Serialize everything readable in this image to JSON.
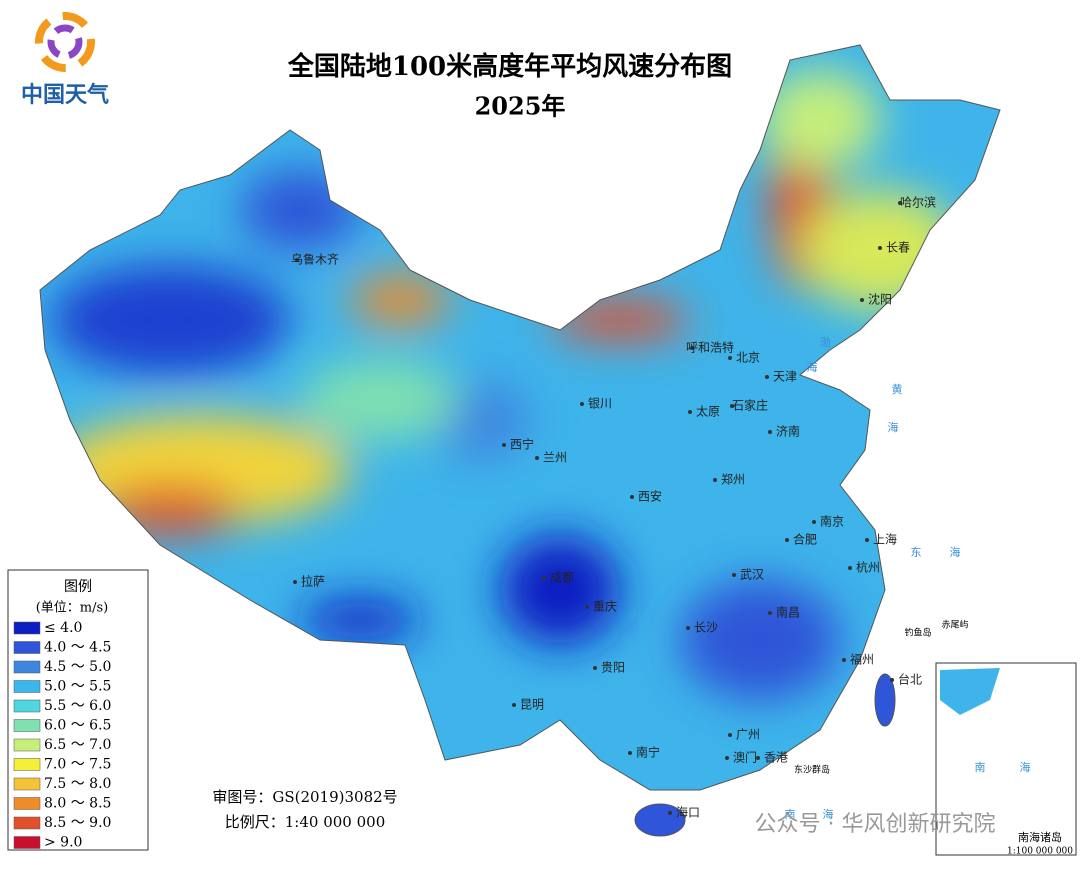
{
  "logo": "中国天气",
  "title": "全国陆地100米高度年平均风速分布图",
  "subtitle": "2025年",
  "legend": {
    "title": "图例",
    "unit": "(单位：m/s)",
    "items": [
      {
        "label": "≤ 4.0",
        "color": "#0b1fc2"
      },
      {
        "label": "4.0 ～ 4.5",
        "color": "#2f55d8"
      },
      {
        "label": "4.5 ～ 5.0",
        "color": "#3c86e0"
      },
      {
        "label": "5.0 ～ 5.5",
        "color": "#3cb7ec"
      },
      {
        "label": "5.5 ～ 6.0",
        "color": "#4fd6e0"
      },
      {
        "label": "6.0 ～ 6.5",
        "color": "#7fe0b0"
      },
      {
        "label": "6.5 ～ 7.0",
        "color": "#c6ef7a"
      },
      {
        "label": "7.0 ～ 7.5",
        "color": "#f6ef3a"
      },
      {
        "label": "7.5 ～ 8.0",
        "color": "#f5c33a"
      },
      {
        "label": "8.0 ～ 8.5",
        "color": "#ee8c2a"
      },
      {
        "label": "8.5 ～ 9.0",
        "color": "#e0502a"
      },
      {
        "label": "> 9.0",
        "color": "#c8102e"
      }
    ]
  },
  "cities": [
    "乌鲁木齐",
    "哈尔滨",
    "长春",
    "沈阳",
    "呼和浩特",
    "北京",
    "天津",
    "银川",
    "太原",
    "石家庄",
    "西宁",
    "兰州",
    "济南",
    "西安",
    "郑州",
    "南京",
    "合肥",
    "上海",
    "杭州",
    "成都",
    "武汉",
    "重庆",
    "长沙",
    "南昌",
    "拉萨",
    "贵阳",
    "福州",
    "台北",
    "昆明",
    "广州",
    "南宁",
    "澳门",
    "香港",
    "海口"
  ],
  "seas": [
    "渤",
    "海",
    "黄",
    "海",
    "东",
    "海",
    "南",
    "海"
  ],
  "islands": [
    "钓鱼岛",
    "赤尾屿",
    "东沙群岛"
  ],
  "inset": {
    "sea": [
      "南",
      "海"
    ],
    "title": "南海诸岛",
    "scale": "1:100 000 000"
  },
  "approval": "审图号：GS(2019)3082号",
  "scale": "比例尺：1:40 000 000",
  "watermark": "公众号 · 华风创新研究院"
}
